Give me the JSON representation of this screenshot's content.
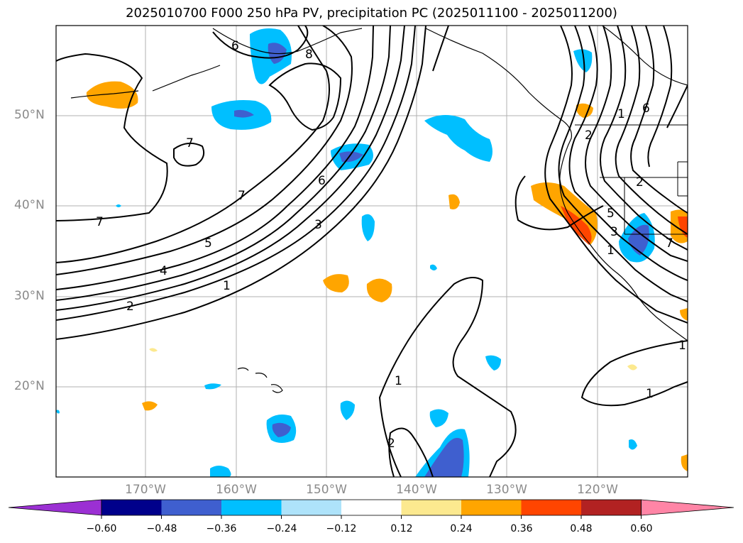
{
  "title": "2025010700 F000 250 hPa PV, precipitation PC (2025011100 - 2025011200)",
  "map": {
    "lat_labels": [
      "50°N",
      "40°N",
      "30°N",
      "20°N"
    ],
    "lon_labels": [
      "170°W",
      "160°W",
      "150°W",
      "140°W",
      "130°W",
      "120°W"
    ],
    "contour_labels": [
      "6",
      "8",
      "7",
      "7",
      "7",
      "6",
      "3",
      "5",
      "4",
      "1",
      "2",
      "1",
      "2",
      "1",
      "2",
      "1",
      "6",
      "2",
      "7",
      "5",
      "1",
      "3",
      "1"
    ]
  },
  "colorbar": {
    "labels": [
      "−0.60",
      "−0.48",
      "−0.36",
      "−0.24",
      "−0.12",
      "0.12",
      "0.24",
      "0.36",
      "0.48",
      "0.60"
    ],
    "colors": [
      "#9b30d3",
      "#00008b",
      "#3f5fcf",
      "#00bfff",
      "#aee3fa",
      "#ffffff",
      "#fce98f",
      "#ffa500",
      "#ff4500",
      "#b22222",
      "#ff85a6"
    ]
  }
}
